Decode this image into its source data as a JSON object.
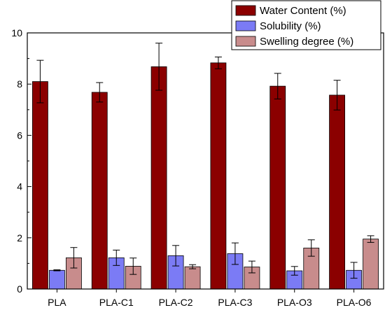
{
  "chart_data": {
    "type": "bar",
    "title": "",
    "xlabel": "",
    "ylabel": "",
    "ylim": [
      0,
      10
    ],
    "yticks": [
      0,
      2,
      4,
      6,
      8,
      10
    ],
    "grid": false,
    "legend_position": "top-right",
    "categories": [
      "PLA",
      "PLA-C1",
      "PLA-C2",
      "PLA-C3",
      "PLA-O3",
      "PLA-O6"
    ],
    "series": [
      {
        "name": "Water Content (%)",
        "color": "#8b0000",
        "values": [
          8.1,
          7.68,
          8.68,
          8.83,
          7.92,
          7.57
        ],
        "errors": [
          0.83,
          0.38,
          0.92,
          0.23,
          0.5,
          0.58
        ]
      },
      {
        "name": "Solubility (%)",
        "color": "#7b7bf5",
        "values": [
          0.73,
          1.22,
          1.3,
          1.38,
          0.71,
          0.73
        ],
        "errors": [
          0.02,
          0.3,
          0.4,
          0.42,
          0.17,
          0.31
        ]
      },
      {
        "name": "Swelling degree (%)",
        "color": "#c88c8c",
        "values": [
          1.22,
          0.89,
          0.87,
          0.86,
          1.6,
          1.95
        ],
        "errors": [
          0.4,
          0.32,
          0.08,
          0.23,
          0.32,
          0.13
        ]
      }
    ]
  }
}
